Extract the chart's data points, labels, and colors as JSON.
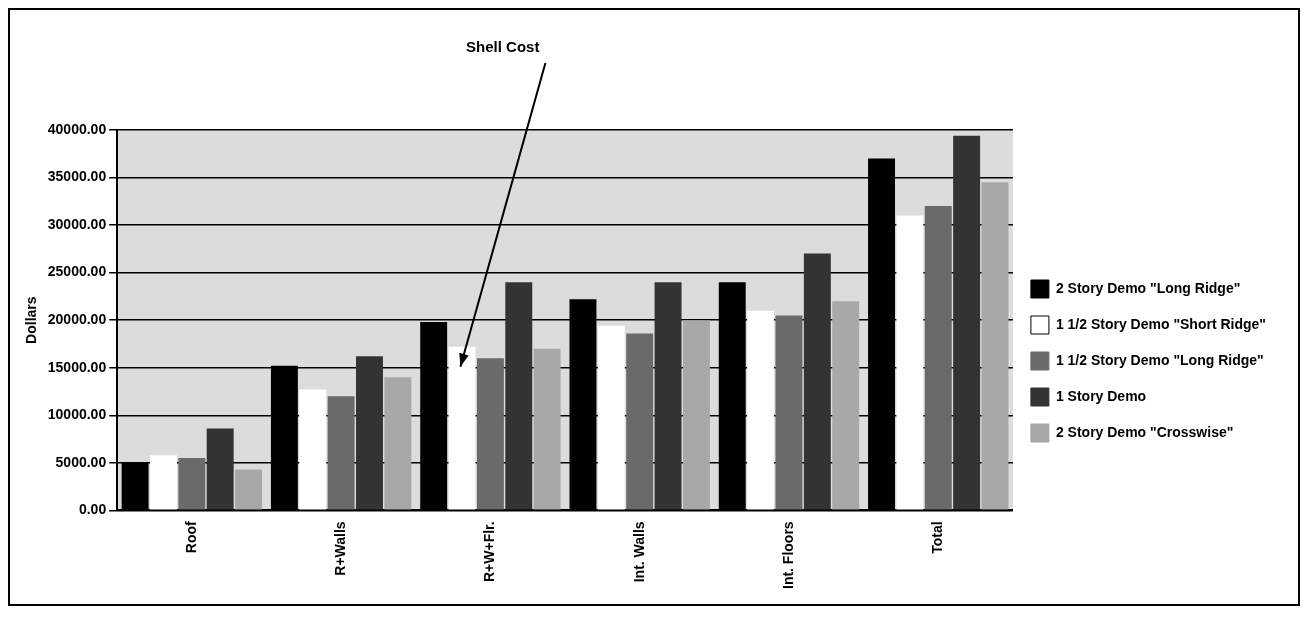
{
  "chart_data": {
    "type": "bar",
    "ylabel": "Dollars",
    "categories": [
      "Roof",
      "R+Walls",
      "R+W+Flr.",
      "Int. Walls",
      "Int. Floors",
      "Total"
    ],
    "series": [
      {
        "name": "2 Story Demo \"Long Ridge\"",
        "color": "#000000",
        "values": [
          5000,
          15200,
          19800,
          22200,
          24000,
          37000
        ]
      },
      {
        "name": "1 1/2 Story Demo \"Short Ridge\"",
        "color": "#ffffff",
        "values": [
          5800,
          12700,
          17200,
          19400,
          21000,
          31000
        ]
      },
      {
        "name": "1 1/2 Story Demo \"Long Ridge\"",
        "color": "#6a6a6a",
        "values": [
          5500,
          12000,
          16000,
          18600,
          20500,
          32000
        ]
      },
      {
        "name": "1 Story Demo",
        "color": "#333333",
        "values": [
          8600,
          16200,
          24000,
          24000,
          27000,
          39400
        ]
      },
      {
        "name": "2 Story Demo \"Crosswise\"",
        "color": "#a8a8a8",
        "values": [
          4300,
          14000,
          17000,
          20000,
          22000,
          34500
        ]
      }
    ],
    "ylim": [
      0,
      40000
    ],
    "yticks": [
      {
        "value": 0,
        "label": "0.00"
      },
      {
        "value": 5000,
        "label": "5000.00"
      },
      {
        "value": 10000,
        "label": "10000.00"
      },
      {
        "value": 15000,
        "label": "15000.00"
      },
      {
        "value": 20000,
        "label": "20000.00"
      },
      {
        "value": 25000,
        "label": "25000.00"
      },
      {
        "value": 30000,
        "label": "30000.00"
      },
      {
        "value": 35000,
        "label": "35000.00"
      },
      {
        "value": 40000,
        "label": "40000.00"
      }
    ],
    "grid": "y",
    "legend": "right",
    "annotations": [
      "Shell Cost"
    ]
  }
}
